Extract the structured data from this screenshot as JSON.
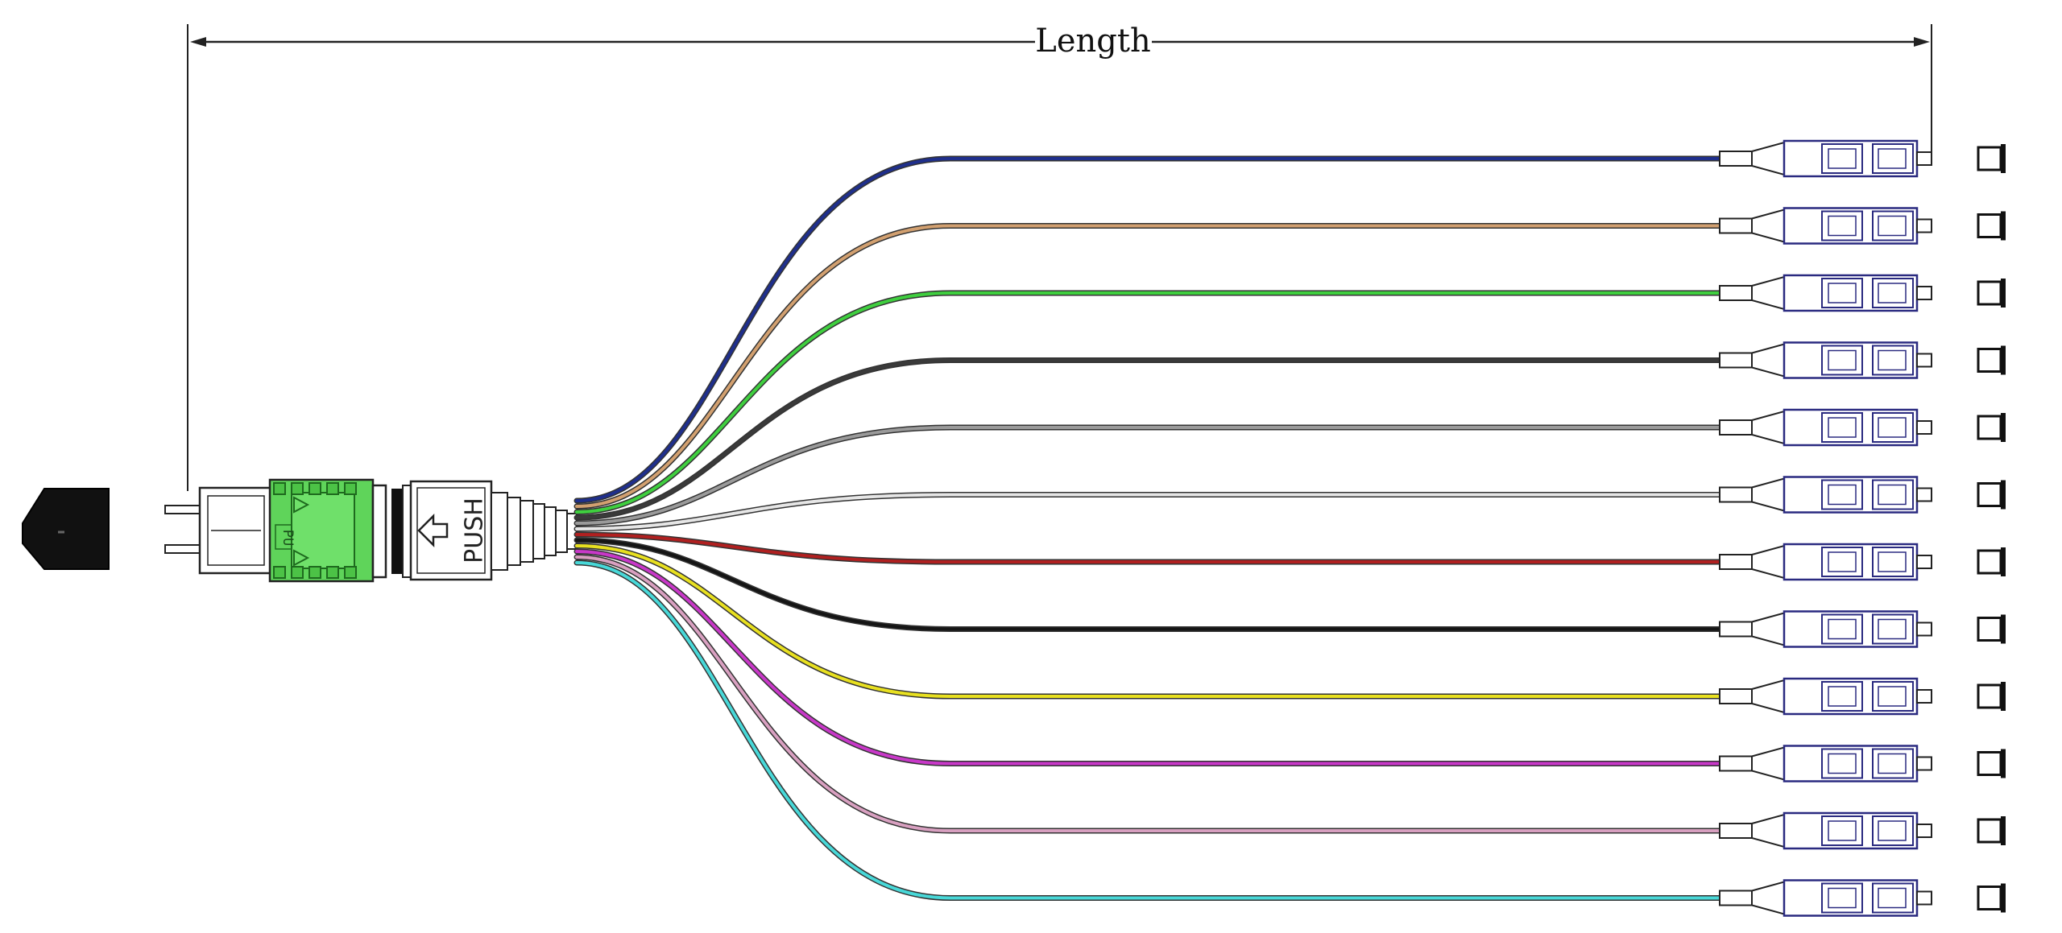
{
  "dimension": {
    "label": "Length"
  },
  "connector": {
    "push_label": "PUSH",
    "latch_label": "PU"
  },
  "colors": {
    "mpo_housing": "#5fd45a",
    "mpo_housing_dark": "#2f9a2b",
    "line": "#222222",
    "lc_outline": "#2a2a80"
  },
  "fibers": [
    {
      "color": "#1f2f8c",
      "name": "blue"
    },
    {
      "color": "#d2a070",
      "name": "orange"
    },
    {
      "color": "#3fcf3f",
      "name": "green"
    },
    {
      "color": "#3a3a3a",
      "name": "brown"
    },
    {
      "color": "#9a9a9a",
      "name": "slate"
    },
    {
      "color": "#e6e6e6",
      "name": "white"
    },
    {
      "color": "#b02020",
      "name": "red"
    },
    {
      "color": "#151515",
      "name": "black"
    },
    {
      "color": "#e8e020",
      "name": "yellow"
    },
    {
      "color": "#c838c8",
      "name": "violet"
    },
    {
      "color": "#d8a0c0",
      "name": "rose"
    },
    {
      "color": "#48d8d8",
      "name": "aqua"
    }
  ]
}
